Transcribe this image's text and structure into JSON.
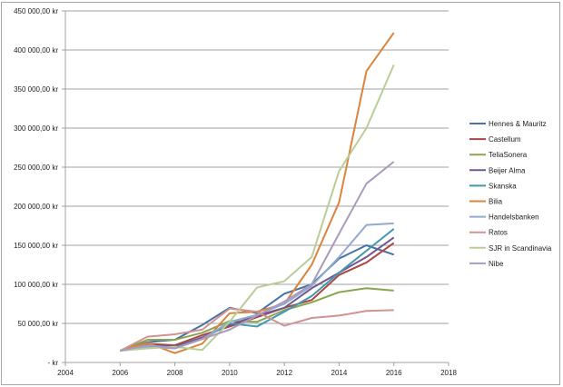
{
  "chart_data": {
    "type": "line",
    "title": "",
    "xlabel": "",
    "ylabel": "",
    "xlim": [
      2004,
      2018
    ],
    "ylim": [
      0,
      450000
    ],
    "x_ticks": [
      "2004",
      "2006",
      "2008",
      "2010",
      "2012",
      "2014",
      "2016",
      "2018"
    ],
    "y_ticks": [
      "-  kr",
      "50 000,00 kr",
      "100 000,00 kr",
      "150 000,00 kr",
      "200 000,00 kr",
      "250 000,00 kr",
      "300 000,00 kr",
      "350 000,00 kr",
      "400 000,00 kr",
      "450 000,00 kr"
    ],
    "y_tick_values": [
      0,
      50000,
      100000,
      150000,
      200000,
      250000,
      300000,
      350000,
      400000,
      450000
    ],
    "grid": "horizontal",
    "legend": "right",
    "x": [
      2006,
      2007,
      2008,
      2009,
      2010,
      2011,
      2012,
      2013,
      2014,
      2015,
      2016
    ],
    "series": [
      {
        "name": "Hennes & Mauritz",
        "color": "#4572a7",
        "values": [
          15000,
          26000,
          29000,
          48000,
          70000,
          63000,
          88000,
          100000,
          133000,
          150000,
          138000
        ]
      },
      {
        "name": "Castellum",
        "color": "#aa4643",
        "values": [
          15000,
          24000,
          22000,
          35000,
          46000,
          58000,
          70000,
          80000,
          112000,
          128000,
          153000
        ]
      },
      {
        "name": "TeliaSonera",
        "color": "#89a54e",
        "values": [
          15000,
          29000,
          29000,
          38000,
          53000,
          52000,
          67000,
          77000,
          90000,
          95000,
          92000
        ]
      },
      {
        "name": "Beijer Alma",
        "color": "#71588f",
        "values": [
          15000,
          22000,
          20000,
          32000,
          48000,
          60000,
          70000,
          95000,
          115000,
          135000,
          160000
        ]
      },
      {
        "name": "Skanska",
        "color": "#4198af",
        "values": [
          15000,
          22000,
          19000,
          30000,
          50000,
          46000,
          65000,
          85000,
          115000,
          143000,
          171000
        ]
      },
      {
        "name": "Bilia",
        "color": "#db843d",
        "values": [
          15000,
          25000,
          12000,
          24000,
          63000,
          65000,
          75000,
          125000,
          205000,
          373000,
          422000
        ]
      },
      {
        "name": "Handelsbanken",
        "color": "#93a9cf",
        "values": [
          15000,
          20000,
          18000,
          30000,
          52000,
          61000,
          75000,
          98000,
          135000,
          176000,
          178000
        ]
      },
      {
        "name": "Ratos",
        "color": "#d19392",
        "values": [
          15000,
          33000,
          36000,
          42000,
          69000,
          65000,
          47000,
          57000,
          60000,
          66000,
          67000
        ]
      },
      {
        "name": "SJR in Scandinavia",
        "color": "#b9cd96",
        "values": [
          15000,
          18000,
          20000,
          16000,
          52000,
          96000,
          104000,
          135000,
          245000,
          300000,
          381000
        ]
      },
      {
        "name": "Nibe",
        "color": "#a99bbd",
        "values": [
          15000,
          22000,
          18000,
          30000,
          42000,
          60000,
          78000,
          100000,
          165000,
          229000,
          257000
        ]
      }
    ]
  }
}
